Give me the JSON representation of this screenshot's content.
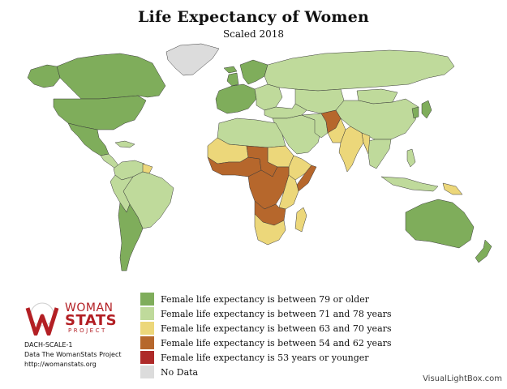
{
  "title": "Life Expectancy of Women",
  "subtitle": "Scaled 2018",
  "colors": {
    "ocean": "#ffffff",
    "border": "#3a3a3a",
    "cat1": "#7fad5b",
    "cat2": "#bfda9b",
    "cat3": "#ecd77a",
    "cat4": "#b6672c",
    "cat5": "#ae2a29",
    "nodata": "#dcdcdc"
  },
  "legend": [
    {
      "label": "Female life expectancy is between 79 or older",
      "color": "#7fad5b"
    },
    {
      "label": "Female life expectancy is between 71 and 78 years",
      "color": "#bfda9b"
    },
    {
      "label": "Female life expectancy is between 63 and 70 years",
      "color": "#ecd77a"
    },
    {
      "label": "Female life expectancy is between 54 and 62 years",
      "color": "#b6672c"
    },
    {
      "label": "Female life expectancy is 53 years or younger",
      "color": "#ae2a29"
    },
    {
      "label": "No Data",
      "color": "#dcdcdc"
    }
  ],
  "logo": {
    "line1": "WOMAN",
    "line2": "STATS",
    "line3": "PROJECT"
  },
  "credits": {
    "code": "DACH-SCALE-1",
    "data": "Data The WomanStats Project",
    "url": "http://womanstats.org"
  },
  "watermark": "WomanStats",
  "source": "VisualLightBox.com"
}
